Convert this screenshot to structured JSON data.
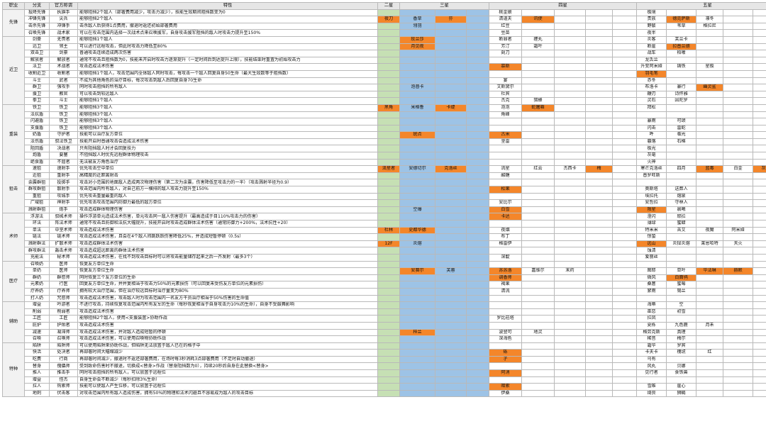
{
  "headers": {
    "profession": "职业",
    "branch": "分支",
    "official": "官方称谓",
    "trait": "特性",
    "star2": "二星",
    "star3": "三星",
    "star4": "四星",
    "star5": "五星"
  },
  "groups": [
    {
      "profession": "先锋",
      "rows": [
        {
          "branch": "投降先锋",
          "name": "执旗手",
          "trait": [
            "能够阻挡",
            "2",
            "个敌人（部署费用减少，攻击力减少",
            "），",
            "技能",
            "生效",
            "期间",
            "阻挡数变为0"
          ],
          "s2": [],
          "s3": [],
          "s4": [
            "桃金娘"
          ],
          "s5": [
            "极境"
          ]
        },
        {
          "branch": "冲锋先锋",
          "name": "尖兵",
          "trait": [
            "能够阻挡2个敌人"
          ],
          "s2": [
            "夜刀"
          ],
          "s3": [
            "香草",
            "芬"
          ],
          "s4": [
            "清道夫",
            "讯使"
          ],
          "s5": [
            "贵族",
            "德克萨斯",
            "凛冬"
          ]
        },
        {
          "branch": "击杀先锋",
          "name": "冲锋手",
          "trait": [
            "击杀敌人后获得1点费用，撤退时返还初始部署费用"
          ],
          "s2": [],
          "s3": [
            "翎羽"
          ],
          "s4": [
            "红豆"
          ],
          "s5": [
            "野鬃",
            "苇草",
            "格拉尼"
          ]
        },
        {
          "branch": "召唤先锋",
          "name": "战术家",
          "trait": [
            "可以在攻击范围内选择一次战术点来召唤援军，自身攻击援军阻挡的敌人时攻击力提升至150%"
          ],
          "s2": [],
          "s3": [],
          "s4": [
            "豆苗"
          ],
          "s5": [
            "夜半"
          ]
        }
      ]
    },
    {
      "profession": "近卫",
      "rows": [
        {
          "branch": "剑豪",
          "name": "无畏者",
          "trait": [
            "能够阻挡1个敌人"
          ],
          "s2": [],
          "s3": [
            "玫兰莎"
          ],
          "s4": [
            "断罪者",
            "缠丸"
          ],
          "s5": [
            "炎客",
            "芙兰卡"
          ]
        },
        {
          "branch": "远卫",
          "name": "领主",
          "trait": [
            "可以进行远程攻击，但此时攻击力降低至80%"
          ],
          "s2": [],
          "s3": [
            "月见夜"
          ],
          "s4": [
            "芳汀",
            "霜叶"
          ],
          "s5": [
            "断崖",
            "拉普兰德"
          ]
        },
        {
          "branch": "双击卫",
          "name": "剑豪",
          "trait": [
            "普通攻击连续造成两次伤害"
          ],
          "s2": [],
          "s3": [],
          "s4": [
            "刻刀"
          ],
          "s5": [
            "战车",
            "柏喙"
          ]
        },
        {
          "branch": "解放者",
          "name": "解放者",
          "trait": [
            "通常不攻击且阻挡数为0，技能未开启时攻击力逐渐提升（一定时间后到达提升上限），技能结束时重置为初始攻击力"
          ],
          "s2": [],
          "s3": [],
          "s4": [],
          "s5": [
            "龙舌兰"
          ]
        },
        {
          "branch": "法卫",
          "name": "术战者",
          "trait": [
            "攻击造成法术伤害"
          ],
          "s2": [],
          "s3": [],
          "s4": [
            "慕斯"
          ],
          "s5": [
            "升变阿米娅",
            "铸铁",
            "星极"
          ]
        },
        {
          "branch": "收割近卫",
          "name": "收割者",
          "trait": [
            "能够阻挡1个敌人，攻击范围内全体敌人同时攻击，每攻击一个敌人回复自身50生命（最大生效数等于阻挡数）"
          ],
          "s2": [],
          "s3": [],
          "s4": [],
          "s5": [
            "羽毛笔"
          ]
        },
        {
          "branch": "斗士",
          "name": "武者",
          "trait": [
            "不成为其他角色的治疗目标，每次攻击到敌人后回复自身70生命"
          ],
          "s2": [],
          "s3": [],
          "s4": [
            "宴"
          ],
          "s5": [
            "赤冬"
          ]
        },
        {
          "branch": "群卫",
          "name": "强攻手",
          "trait": [
            "同时攻击阻挡的所有敌人"
          ],
          "s2": [],
          "s3": [
            "泡普卡"
          ],
          "s4": [
            "艾斯黛尔"
          ],
          "s5": [
            "布洛卡",
            "暴行",
            "幽灵鲨"
          ]
        },
        {
          "branch": "援卫",
          "name": "教官",
          "trait": [
            "可以攻击到较远敌人"
          ],
          "s2": [],
          "s3": [],
          "s4": [
            "杜宾"
          ],
          "s5": [
            "鞭刃",
            "诗怀雅"
          ]
        },
        {
          "branch": "拳卫",
          "name": "斗士",
          "trait": [
            "能够阻挡1个敌人"
          ],
          "s2": [],
          "s3": [],
          "s4": [
            "杰克",
            "猎蜂"
          ],
          "s5": [
            "灵石",
            "因陀罗"
          ]
        }
      ]
    },
    {
      "profession": "重装",
      "rows": [
        {
          "branch": "铁卫",
          "name": "铁卫",
          "trait": [
            "能够阻挡3个敌人"
          ],
          "s2": [
            "黑角"
          ],
          "s3": [
            "米格鲁",
            "卡缇"
          ],
          "s4": [
            "泡泡",
            "蛇屠箱"
          ],
          "s5": [
            "拜松"
          ]
        },
        {
          "branch": "法抗盾",
          "name": "铁卫",
          "trait": [
            "能够阻挡3个敌人"
          ],
          "s2": [],
          "s3": [],
          "s4": [
            "角峰"
          ],
          "s5": []
        },
        {
          "branch": "闪避盾",
          "name": "铁卫",
          "trait": [
            "能够阻挡3个敌人"
          ],
          "s2": [],
          "s3": [],
          "s4": [],
          "s5": [
            "暴雨",
            "可颂"
          ]
        },
        {
          "branch": "支援盾",
          "name": "铁卫",
          "trait": [
            "能够阻挡3个敌人"
          ],
          "s2": [],
          "s3": [],
          "s4": [],
          "s5": [
            "闪击",
            "雷蛇"
          ]
        },
        {
          "branch": "奶盾",
          "name": "守护者",
          "trait": [
            "技能可以治疗友方单位"
          ],
          "s2": [],
          "s3": [
            "斑点"
          ],
          "s4": [
            "古米"
          ],
          "s5": [
            "吽",
            "临光"
          ]
        },
        {
          "branch": "法伤盾",
          "name": "驭法铁卫",
          "trait": [
            "技能开启时普通攻击会造成法术伤害"
          ],
          "s2": [],
          "s3": [],
          "s4": [
            "坚雷"
          ],
          "s5": [
            "暮落",
            "石棉"
          ]
        },
        {
          "branch": "阻回盾",
          "name": "决战者",
          "trait": [
            "只有阻挡敌人时才会回复技力"
          ],
          "s2": [],
          "s3": [],
          "s4": [],
          "s5": [
            "极光"
          ]
        },
        {
          "branch": "炮盾",
          "name": "要塞",
          "trait": [
            "不阻挡敌人时优先远程群体物理攻击"
          ],
          "s2": [],
          "s3": [],
          "s4": [],
          "s5": [
            "灰毫"
          ]
        },
        {
          "branch": "绝食盾",
          "name": "不屈者",
          "trait": [
            "无法被友方角色治疗"
          ],
          "s2": [],
          "s3": [],
          "s4": [],
          "s5": [
            "火神"
          ]
        }
      ]
    },
    {
      "profession": "狙击",
      "rows": [
        {
          "branch": "速狙",
          "name": "速射手",
          "trait": [
            "优先攻击空中单位"
          ],
          "s2": [
            "流星者"
          ],
          "s3": [
            "安德切尔",
            "克洛丝"
          ],
          "s4": [
            "流星",
            "红云",
            "杰西卡",
            "梅"
          ],
          "s5": [
            "寒芒克洛丝",
            "四月",
            "蓝毒",
            "白金",
            "灰喉"
          ]
        },
        {
          "branch": "近狙",
          "name": "重射手",
          "trait": [
            "高精度的近距离射击"
          ],
          "s2": [],
          "s3": [],
          "s4": [
            "酸糖"
          ],
          "s5": [
            "普罗旺斯"
          ]
        },
        {
          "branch": "余震群狙",
          "name": "投掷手",
          "trait": [
            "攻击对小范围的地面敌人造成两次物理伤害（第二次为余震，伤害降低至攻击力的一半）（攻击溅射半径为0.9）"
          ],
          "s2": [],
          "s3": [],
          "s4": [],
          "s5": []
        },
        {
          "branch": "群攻群狙",
          "name": "散射手",
          "trait": [
            "攻击范围内所有敌人，对自己前方一横排的敌人攻击力提升至150%"
          ],
          "s2": [],
          "s3": [],
          "s4": [
            "松果"
          ],
          "s5": [
            "奥斯塔",
            "送葬人"
          ]
        },
        {
          "branch": "重狙",
          "name": "攻城手",
          "trait": [
            "优先攻击重量最重的敌人"
          ],
          "s2": [],
          "s3": [],
          "s4": [],
          "s5": [
            "埃拉托",
            "熔泉"
          ]
        },
        {
          "branch": "广域狙",
          "name": "神射手",
          "trait": [
            "优先攻击攻击范围内防御力最低的敌方单位"
          ],
          "s2": [],
          "s3": [],
          "s4": [
            "安比尔"
          ],
          "s5": [
            "安哲拉",
            "守林人"
          ]
        },
        {
          "branch": "溅射群狙",
          "name": "炮手",
          "trait": [
            "攻击造成群体物理伤害"
          ],
          "s2": [],
          "s3": [
            "空爆"
          ],
          "s4": [
            "白雪"
          ],
          "s5": [
            "陨星",
            "晨曦"
          ]
        }
      ]
    },
    {
      "profession": "术师",
      "rows": [
        {
          "branch": "浮游法",
          "name": "驭械术师",
          "trait": [
            "操作浮游单元造成法术伤害，单元攻击同一敌人伤害提升（最高造成于目110%攻击力的伤害）"
          ],
          "s2": [],
          "s3": [],
          "s4": [
            "卡达"
          ],
          "s5": [
            "澄闪",
            "耶拉"
          ]
        },
        {
          "branch": "环法",
          "name": "阵法术师",
          "trait": [
            "通常不攻击且防御和法抗大幅提升，技能开启时攻击造成群体法术伤害（通常防御力+200%，法术抗性+20）"
          ],
          "s2": [],
          "s3": [],
          "s4": [],
          "s5": [
            "薄绿",
            "蜜蜡"
          ]
        },
        {
          "branch": "单法",
          "name": "中坚术师",
          "trait": [
            "攻击造成法术伤害"
          ],
          "s2": [
            "杜林"
          ],
          "s3": [
            "史都华德"
          ],
          "s4": [
            "夜烟"
          ],
          "s5": [
            "特米米",
            "苦艾",
            "夜魔",
            "阿米娅"
          ]
        },
        {
          "branch": "链法",
          "name": "链术师",
          "trait": [
            "攻击造成法术伤害，且会在4个敌人间跳跃跃伤害降低25%，并造成短暂停顿（0.5s）"
          ],
          "s2": [],
          "s3": [],
          "s4": [
            "布丁"
          ],
          "s5": [
            "惊蛰"
          ]
        },
        {
          "branch": "溅射群法",
          "name": "扩散术师",
          "trait": [
            "攻击造成群体法术伤害"
          ],
          "s2": [
            "12F"
          ],
          "s3": [
            "炎熔"
          ],
          "s4": [
            "格雷伊"
          ],
          "s5": [
            "远山",
            "炎狱炎熔",
            "莱恩哈特",
            "天火"
          ]
        },
        {
          "branch": "群攻群法",
          "name": "轰击术师",
          "trait": [
            "攻击造成超远距离的群体法术伤害"
          ],
          "s2": [],
          "s3": [],
          "s4": [],
          "s5": [
            "蚀清"
          ]
        },
        {
          "branch": "充能法",
          "name": "秘术师",
          "trait": [
            "攻击造成法术伤害，在找不到攻击目标时可以将攻击能量储存起来之后一齐发射（最多3个）"
          ],
          "s2": [],
          "s3": [],
          "s4": [
            "深靛"
          ],
          "s5": [
            "爱丽丝"
          ]
        }
      ]
    },
    {
      "profession": "医疗",
      "rows": [
        {
          "branch": "召唤奶",
          "name": "医师",
          "trait": [
            "恢复友方单位生命"
          ],
          "s2": [],
          "s3": [],
          "s4": [],
          "s5": []
        },
        {
          "branch": "单奶",
          "name": "医师",
          "trait": [
            "恢复友方单位生命"
          ],
          "s2": [],
          "s3": [
            "安赛尔",
            "芙蓉"
          ],
          "s4": [
            "苏苏洛",
            "嘉维尔",
            "末药"
          ],
          "s5": [
            "图耶",
            "亚叶",
            "华法琳",
            "赫默"
          ]
        },
        {
          "branch": "群奶",
          "name": "群愈师",
          "trait": [
            "同时恢复三个友方单位的生命"
          ],
          "s2": [],
          "s3": [],
          "s4": [
            "调香师"
          ],
          "s5": [
            "微风",
            "白面鸮"
          ]
        },
        {
          "branch": "元素奶",
          "name": "行医",
          "trait": [
            "回复友方单位生命，并并复相当于攻击力50%的元素损伤（可以回复未受伤友方单位的元素损伤）"
          ],
          "s2": [],
          "s3": [],
          "s4": [
            "褐果"
          ],
          "s5": [
            "桑葚",
            "蜜莓"
          ]
        },
        {
          "branch": "疗养奶",
          "name": "疗养师",
          "trait": [
            "拥有较大治疗范围，但在治疗较远目标时治疗量变为80%"
          ],
          "s2": [],
          "s3": [],
          "s4": [
            "清流"
          ],
          "s5": [
            "絮雨",
            "锡兰"
          ]
        },
        {
          "branch": "打人奶",
          "name": "咒愈师",
          "trait": [
            "攻击造成法术伤害，攻击敌人时为攻击范围内一名友方干员治疗相当于50%伤害的生命值"
          ],
          "s2": [],
          "s3": [],
          "s4": [],
          "s5": []
        }
      ]
    },
    {
      "profession": "辅助",
      "rows": [
        {
          "branch": "增益",
          "name": "吟游者",
          "trait": [
            "不进行攻击，持续恢复攻击范围内所有友军的生命（每秒恢复相当于自身攻击力10%的生命），自身不受鼓舞影响"
          ],
          "s2": [],
          "s3": [],
          "s4": [],
          "s5": [
            "海蒂",
            "空"
          ]
        },
        {
          "branch": "削弱",
          "name": "削弱者",
          "trait": [
            "攻击造成法术伤害"
          ],
          "s2": [],
          "s3": [],
          "s4": [],
          "s5": [
            "巫恋",
            "初雪"
          ]
        },
        {
          "branch": "工匠",
          "name": "工匠",
          "trait": [
            "能够阻挡2个敌人，使用<支援装置>协助作战"
          ],
          "s2": [],
          "s3": [],
          "s4": [
            "罗比菈塔"
          ],
          "s5": [
            "拉凤"
          ]
        },
        {
          "branch": "庇护",
          "name": "护佑者",
          "trait": [
            "攻击造成法术伤害"
          ],
          "s2": [],
          "s3": [],
          "s4": [],
          "s5": [
            "夏栎",
            "九色鹿",
            "月禾"
          ]
        },
        {
          "branch": "减速",
          "name": "凝滞师",
          "trait": [
            "攻击造成法术伤害，并对敌人造成短暂的停顿"
          ],
          "s2": [],
          "s3": [
            "梓兰"
          ],
          "s4": [
            "波登可",
            "地灵"
          ],
          "s5": [
            "格劳克斯",
            "真理"
          ]
        },
        {
          "branch": "召唤",
          "name": "召唤师",
          "trait": [
            "攻击造成法术伤害，可以使用召唤物协助作战"
          ],
          "s2": [],
          "s3": [],
          "s4": [
            "深海色"
          ],
          "s5": [
            "稀音",
            "梅尔"
          ]
        }
      ]
    },
    {
      "profession": "特种",
      "rows": [
        {
          "branch": "陷阱",
          "name": "陷阱师",
          "trait": [
            "可以使用陷阱来协助作战，但陷阱无法放置于敌人已在的格子中"
          ],
          "s2": [],
          "s3": [],
          "s4": [],
          "s5": [
            "霜华",
            "罗宾"
          ]
        },
        {
          "branch": "快活",
          "name": "处决者",
          "trait": [
            "再部署时间大幅缩减少"
          ],
          "s2": [],
          "s3": [],
          "s4": [
            "砾"
          ],
          "s5": [
            "卡夫卡",
            "槐琥",
            "红"
          ]
        },
        {
          "branch": "吃费",
          "name": "行商",
          "trait": [
            "再部署时间减少，撤退时不返还部署费用，在场时每3秒消耗3点部署费用（不足时自动撤退）"
          ],
          "s2": [],
          "s3": [],
          "s4": [
            "孑"
          ],
          "s5": [
            "乌有"
          ]
        },
        {
          "branch": "替身",
          "name": "傀儡师",
          "trait": [
            "受到致命伤害时不撤退，切换成<替身>作战（替身阻挡数为0），持续20秒后自身在此替换<替身>"
          ],
          "s2": [],
          "s3": [],
          "s4": [],
          "s5": [
            "风丸",
            "贝娜"
          ]
        },
        {
          "branch": "推人",
          "name": "推击手",
          "trait": [
            "同时攻击阻挡的所有敌人，可以放置于远程位"
          ],
          "s2": [],
          "s3": [],
          "s4": [
            "阿消"
          ],
          "s5": [
            "见行者",
            "食铁兽"
          ]
        },
        {
          "branch": "增益",
          "name": "怪杰",
          "trait": [
            "自身生命会不断减少（每秒扣除3%生命）"
          ],
          "s2": [],
          "s3": [],
          "s4": [],
          "s5": []
        },
        {
          "branch": "拉人",
          "name": "钩索师",
          "trait": [
            "技能可以使敌人产生位移，可以放置于远程位"
          ],
          "s2": [],
          "s3": [],
          "s4": [
            "暗索"
          ],
          "s5": [
            "雪雉",
            "崖心"
          ]
        },
        {
          "branch": "地刺",
          "name": "伏击客",
          "trait": [
            "对攻击范围内所有敌人造成伤害，拥有50%的物理和法术闪避且不容易成为敌人的攻击目标"
          ],
          "s2": [],
          "s3": [],
          "s4": [
            "伊桑"
          ],
          "s5": [
            "绮良",
            "狮蝎"
          ]
        }
      ]
    }
  ],
  "highlight_names": [
    "芬",
    "讯使",
    "德克萨斯",
    "夜刀",
    "玫兰莎",
    "月见夜",
    "拉普兰德",
    "慕斯",
    "羽毛笔",
    "幽灵鲨",
    "卡缇",
    "黑角",
    "蛇屠箱",
    "斑点",
    "古米",
    "流星者",
    "克洛丝",
    "梅",
    "蓝毒",
    "灰喉",
    "松果",
    "白雪",
    "陨星",
    "卡达",
    "杜林",
    "史都华德",
    "12F",
    "远山",
    "安赛尔",
    "苏苏洛",
    "华法琳",
    "赫默",
    "调香师",
    "白面鸮",
    "梓兰",
    "砾",
    "孑",
    "阿消",
    "暗索"
  ],
  "colors": {
    "header": "#e6e6e6",
    "star2": "#c6e0b4",
    "star3": "#9dc3e6",
    "highlight": "#f4862a",
    "keyword": "#2f6fd1",
    "note": "#3a9a3a"
  }
}
